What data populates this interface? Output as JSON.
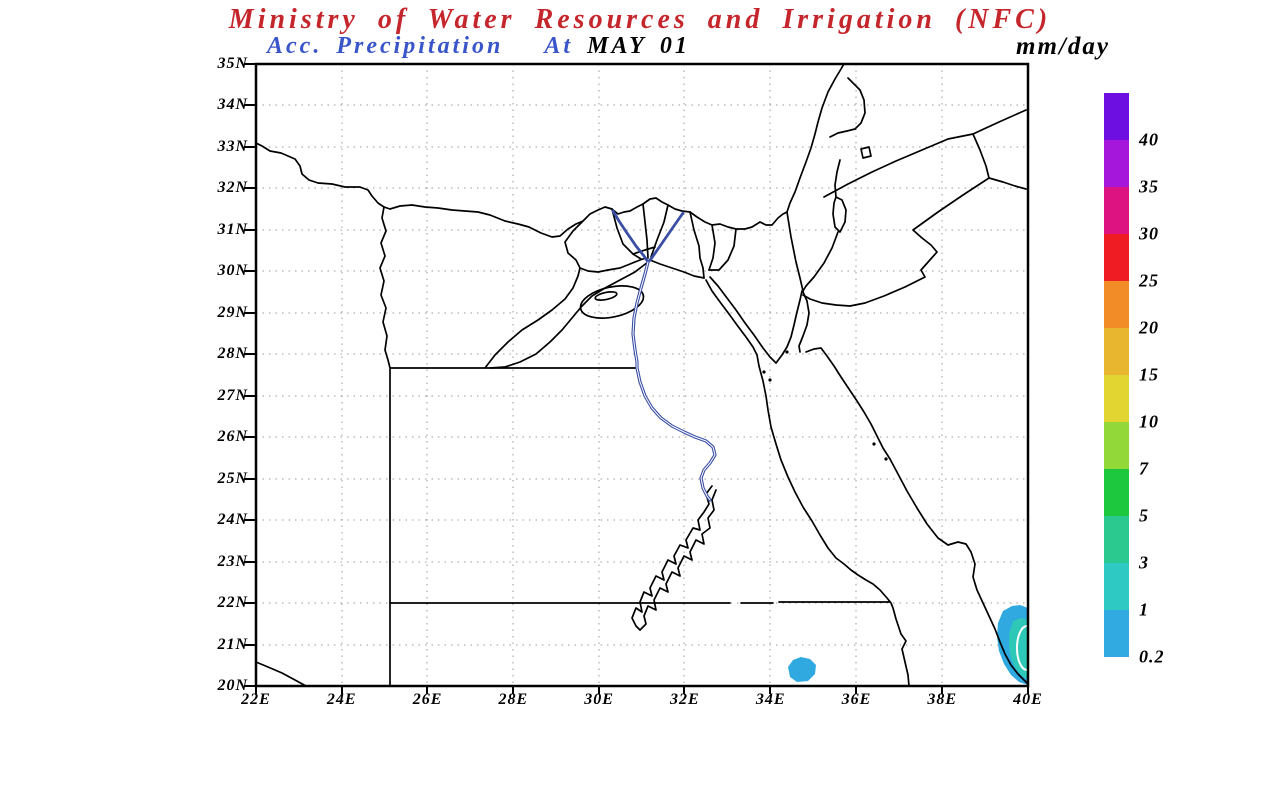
{
  "header": {
    "title": "Ministry of Water Resources and Irrigation (NFC)",
    "subtitle_product": "Acc. Precipitation",
    "subtitle_at": "At",
    "subtitle_date": "MAY 01",
    "units": "mm/day"
  },
  "colors": {
    "title_red": "#C5262C",
    "subtitle_blue": "#3A55C9",
    "date_black": "#000000",
    "river_blue": "#3B4EA5",
    "grid_gray": "#999999",
    "frame_black": "#000000",
    "precip_light_blue": "#2FA9E0",
    "precip_teal": "#2EC8B9",
    "contour_white": "#FFFFFF"
  },
  "axes": {
    "lat_labels": [
      "35N",
      "34N",
      "33N",
      "32N",
      "31N",
      "30N",
      "29N",
      "28N",
      "27N",
      "26N",
      "25N",
      "24N",
      "23N",
      "22N",
      "21N",
      "20N"
    ],
    "lon_labels": [
      "22E",
      "24E",
      "26E",
      "28E",
      "30E",
      "32E",
      "34E",
      "36E",
      "38E",
      "40E"
    ],
    "lat_range_deg_n": [
      20,
      35
    ],
    "lon_range_deg_e": [
      22,
      40
    ]
  },
  "colorbar": {
    "levels_top_to_bottom": [
      "40",
      "35",
      "30",
      "25",
      "20",
      "15",
      "10",
      "7",
      "5",
      "3",
      "1",
      "0.2"
    ],
    "colors_top_to_bottom": [
      "#6C0FE0",
      "#A517DB",
      "#DC1380",
      "#EF1C23",
      "#F28C26",
      "#E9B62F",
      "#E2D532",
      "#92D838",
      "#1DC83F",
      "#2BC98F",
      "#2FC9C4",
      "#31AAE2"
    ]
  },
  "chart_data": {
    "type": "map",
    "title": "Ministry of Water Resources and Irrigation (NFC)",
    "subtitle": "Acc. Precipitation  At MAY 01",
    "units": "mm/day",
    "region": "Egypt and surrounding countries (Nile Delta, Sinai, Levant, NW Saudi Arabia, N Sudan)",
    "projection_extent": {
      "lon_e": [
        22,
        40
      ],
      "lat_n": [
        20,
        35
      ]
    },
    "grid": {
      "lat_step_deg": 1,
      "lon_step_deg": 2,
      "style": "dotted"
    },
    "scale_mm_per_day": [
      0.2,
      1,
      3,
      5,
      7,
      10,
      15,
      20,
      25,
      30,
      35,
      40
    ],
    "precipitation_features": [
      {
        "name": "small spot",
        "approx_lon_e": 34.8,
        "approx_lat_n": 20.3,
        "value_mm_day": "0.2-1"
      },
      {
        "name": "southeast coastal area (clipped at 40E)",
        "approx_lon_e": 39.8,
        "approx_lat_n": 21.0,
        "value_mm_day": "outer 0.2-1, core 1-3 with white contour"
      }
    ],
    "map_line_features": [
      "Mediterranean coast",
      "Nile river and Delta branches",
      "Lake Nasser",
      "Gulf of Suez",
      "Gulf of Aqaba",
      "Red Sea coasts",
      "country borders (Libya 25E, Sudan 22N, Israel, Jordan, Saudi Arabia)",
      "governorate boundaries",
      "Fayoum depression with Lake Qarun",
      "Dead Sea"
    ]
  }
}
